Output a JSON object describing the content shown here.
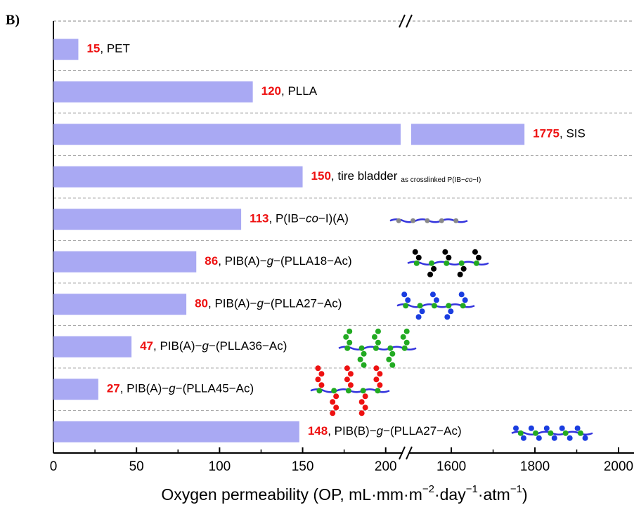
{
  "chart_data": {
    "type": "bar",
    "orientation": "horizontal",
    "panel_label": "B)",
    "xlabel": "Oxygen permeability (OP, mL·mm·m−2·day−1·atm−1)",
    "categories": [
      ", PET",
      ", PLLA",
      ", SIS",
      ", tire bladder",
      ", P(IB−co−I)(A)",
      ", PIB(A)−g−(PLLA18−Ac)",
      ", PIB(A)−g−(PLLA27−Ac)",
      ", PIB(A)−g−(PLLA36−Ac)",
      ", PIB(A)−g−(PLLA45−Ac)",
      ", PIB(B)−g−(PLLA27−Ac)"
    ],
    "values": [
      15,
      120,
      1775,
      150,
      113,
      86,
      80,
      47,
      27,
      148
    ],
    "annotation": "as crosslinked P(IB−co−I)",
    "color": "#a9a9f3",
    "value_label_color": "#ee1111",
    "xlim_segments": [
      [
        0,
        209
      ],
      [
        1504,
        2037
      ]
    ],
    "xticks": [
      0,
      50,
      100,
      150,
      200,
      1600,
      1800,
      2000
    ],
    "minor_xticks": [
      25,
      75,
      125,
      175,
      1700,
      1900
    ],
    "grid": true
  }
}
